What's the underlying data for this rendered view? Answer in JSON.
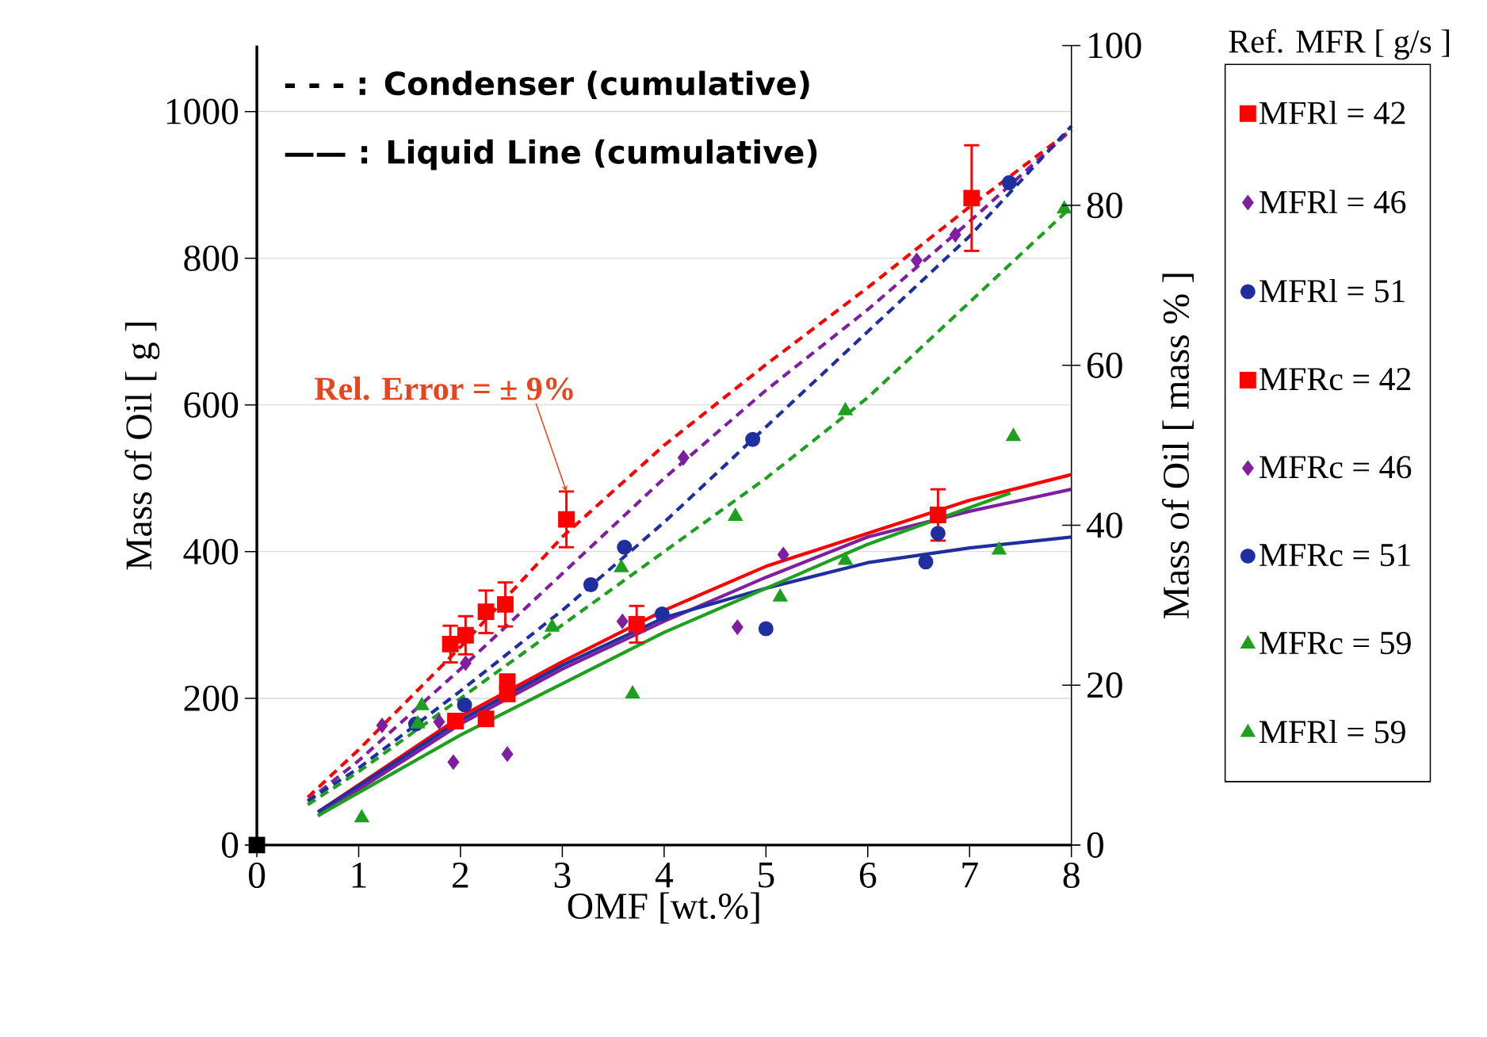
{
  "chart_data": {
    "type": "scatter",
    "xlabel": "OMF [wt.%]",
    "ylabel": "Mass of Oil  [ g ]",
    "y2label": "Mass of Oil [ mass % ]",
    "legend_title": "Ref. MFR [ g/s ]",
    "xlim": [
      0,
      8
    ],
    "xticks": [
      0,
      1,
      2,
      3,
      4,
      5,
      6,
      7,
      8
    ],
    "ylim": [
      0,
      1090
    ],
    "yticks": [
      0,
      200,
      400,
      600,
      800,
      1000
    ],
    "y2lim": [
      0,
      100
    ],
    "y2ticks": [
      0,
      20,
      40,
      60,
      80,
      100
    ],
    "grid": "y",
    "legend": "right",
    "annotations": [
      "- - - : Condenser (cumulative)",
      "—— : Liquid Line (cumulative)",
      {
        "text": "Rel. Error = ± 9%",
        "x": 3.04,
        "y": 482
      }
    ],
    "series": [
      {
        "name": "MFRl = 42",
        "marker": "square",
        "color": "#ff0000",
        "x": [
          1.95,
          2.25,
          2.46,
          2.46,
          3.73,
          6.69
        ],
        "values": [
          169,
          172,
          223,
          206,
          301,
          450
        ],
        "errors": [
          null,
          null,
          null,
          null,
          25,
          35
        ]
      },
      {
        "name": "MFRl = 46",
        "marker": "diamond",
        "color": "#7f1f9f",
        "x": [
          1.79,
          1.93,
          2.46,
          3.59,
          4.72,
          5.17
        ],
        "values": [
          168,
          113,
          124,
          305,
          297,
          396
        ]
      },
      {
        "name": "MFRl = 51",
        "marker": "circle",
        "color": "#1f2f9f",
        "x": [
          2.04,
          3.98,
          5.0,
          6.57,
          6.69
        ],
        "values": [
          191,
          315,
          295,
          386,
          425
        ]
      },
      {
        "name": "MFRc = 42",
        "marker": "square",
        "color": "#ff0000",
        "x": [
          1.9,
          2.05,
          2.25,
          2.44,
          3.04,
          7.02
        ],
        "values": [
          274,
          286,
          318,
          328,
          444,
          882
        ],
        "errors": [
          25,
          26,
          29,
          30,
          38,
          72
        ]
      },
      {
        "name": "MFRc = 46",
        "marker": "diamond",
        "color": "#7f1f9f",
        "x": [
          1.23,
          2.05,
          4.19,
          6.48,
          6.86
        ],
        "values": [
          163,
          248,
          528,
          797,
          832
        ]
      },
      {
        "name": "MFRc = 51",
        "marker": "circle",
        "color": "#1f2f9f",
        "x": [
          1.56,
          3.28,
          3.61,
          4.87,
          7.39
        ],
        "values": [
          165,
          355,
          406,
          553,
          903
        ]
      },
      {
        "name": "MFRc = 59",
        "marker": "triangle",
        "color": "#1f9f1f",
        "x": [
          1.58,
          2.9,
          3.58,
          4.7,
          5.78,
          7.93
        ],
        "values": [
          165,
          297,
          378,
          448,
          592,
          867
        ]
      },
      {
        "name": "MFRl = 59",
        "marker": "triangle",
        "color": "#1f9f1f",
        "x": [
          1.03,
          1.62,
          3.69,
          5.14,
          5.78,
          7.29,
          7.43
        ],
        "values": [
          37,
          190,
          206,
          338,
          388,
          402,
          557
        ]
      },
      {
        "marker": "square",
        "color": "#000000",
        "x": [
          0
        ],
        "values": [
          0
        ]
      },
      {
        "type": "line",
        "line_style": "dashed",
        "color": "#ff0000",
        "x": [
          0.5,
          1,
          2,
          3,
          4,
          5,
          6,
          7,
          8
        ],
        "values": [
          65,
          130,
          270,
          420,
          545,
          655,
          760,
          870,
          975
        ]
      },
      {
        "type": "line",
        "line_style": "dashed",
        "color": "#7f1f9f",
        "x": [
          0.5,
          1,
          2,
          3,
          4,
          5,
          6,
          7,
          8
        ],
        "values": [
          60,
          115,
          240,
          370,
          500,
          620,
          730,
          850,
          975
        ]
      },
      {
        "type": "line",
        "line_style": "dashed",
        "color": "#1f2f9f",
        "x": [
          0.5,
          1,
          2,
          3,
          4,
          5,
          6,
          7,
          8
        ],
        "values": [
          60,
          105,
          210,
          320,
          440,
          570,
          700,
          830,
          980
        ]
      },
      {
        "type": "line",
        "line_style": "dashed",
        "color": "#1f9f1f",
        "x": [
          0.5,
          1,
          2,
          3,
          4,
          5,
          6,
          7,
          8
        ],
        "values": [
          55,
          100,
          200,
          300,
          400,
          500,
          610,
          740,
          870
        ]
      },
      {
        "type": "line",
        "line_style": "solid",
        "color": "#ff0000",
        "x": [
          0.6,
          2,
          3,
          4,
          5,
          6,
          7,
          8
        ],
        "values": [
          45,
          175,
          250,
          320,
          380,
          425,
          470,
          505
        ]
      },
      {
        "type": "line",
        "line_style": "solid",
        "color": "#7f1f9f",
        "x": [
          0.6,
          2,
          3,
          4,
          5,
          6,
          7,
          8
        ],
        "values": [
          40,
          165,
          240,
          305,
          365,
          420,
          455,
          485
        ]
      },
      {
        "type": "line",
        "line_style": "solid",
        "color": "#1f2f9f",
        "x": [
          0.6,
          2,
          3,
          4,
          5,
          6,
          7,
          8
        ],
        "values": [
          45,
          170,
          245,
          310,
          350,
          385,
          405,
          420
        ]
      },
      {
        "type": "line",
        "line_style": "solid",
        "color": "#1f9f1f",
        "x": [
          0.6,
          2,
          3,
          4,
          5,
          6,
          7,
          7.4
        ],
        "values": [
          40,
          150,
          220,
          290,
          350,
          410,
          460,
          480
        ]
      }
    ]
  }
}
